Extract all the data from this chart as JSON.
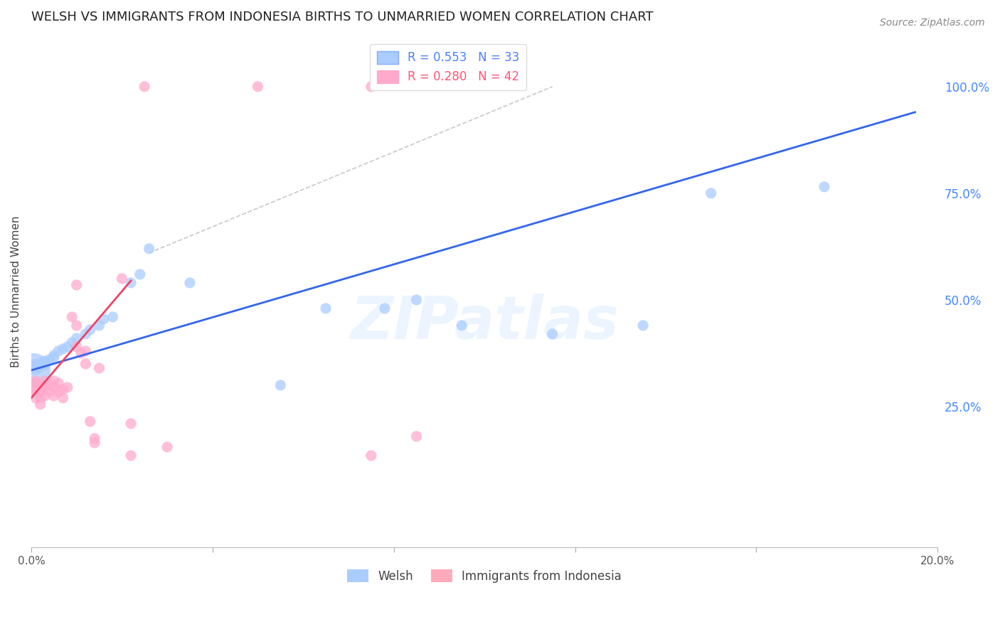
{
  "title": "WELSH VS IMMIGRANTS FROM INDONESIA BIRTHS TO UNMARRIED WOMEN CORRELATION CHART",
  "source": "Source: ZipAtlas.com",
  "ylabel": "Births to Unmarried Women",
  "xlim": [
    0.0,
    0.2
  ],
  "ylim": [
    -0.08,
    1.12
  ],
  "yticks_right": [
    0.25,
    0.5,
    0.75,
    1.0
  ],
  "ytick_labels_right": [
    "25.0%",
    "50.0%",
    "75.0%",
    "100.0%"
  ],
  "legend_items": [
    {
      "label": "R = 0.553   N = 33",
      "color": "#4d7fff"
    },
    {
      "label": "R = 0.280   N = 42",
      "color": "#ff5577"
    }
  ],
  "bottom_legend": [
    "Welsh",
    "Immigrants from Indonesia"
  ],
  "bottom_legend_colors": [
    "#aaccff",
    "#ffaabb"
  ],
  "watermark_text": "ZIPatlas",
  "blue_scatter": {
    "x": [
      0.0005,
      0.001,
      0.001,
      0.002,
      0.002,
      0.003,
      0.003,
      0.004,
      0.005,
      0.005,
      0.006,
      0.007,
      0.008,
      0.009,
      0.01,
      0.012,
      0.013,
      0.015,
      0.016,
      0.018,
      0.022,
      0.024,
      0.026,
      0.035,
      0.055,
      0.065,
      0.078,
      0.085,
      0.095,
      0.115,
      0.135,
      0.15,
      0.175
    ],
    "y": [
      0.335,
      0.34,
      0.345,
      0.345,
      0.35,
      0.35,
      0.355,
      0.36,
      0.365,
      0.37,
      0.38,
      0.385,
      0.39,
      0.4,
      0.41,
      0.42,
      0.43,
      0.44,
      0.455,
      0.46,
      0.54,
      0.56,
      0.62,
      0.54,
      0.3,
      0.48,
      0.48,
      0.5,
      0.44,
      0.42,
      0.44,
      0.75,
      0.765
    ],
    "sizes": [
      1200,
      200,
      200,
      150,
      150,
      150,
      150,
      120,
      120,
      120,
      120,
      120,
      120,
      120,
      120,
      120,
      120,
      120,
      120,
      120,
      120,
      120,
      120,
      120,
      120,
      120,
      120,
      120,
      120,
      120,
      120,
      120,
      120
    ]
  },
  "pink_scatter": {
    "x": [
      0.001,
      0.001,
      0.001,
      0.001,
      0.001,
      0.002,
      0.002,
      0.002,
      0.002,
      0.003,
      0.003,
      0.003,
      0.004,
      0.004,
      0.005,
      0.005,
      0.005,
      0.006,
      0.006,
      0.007,
      0.007,
      0.008,
      0.009,
      0.01,
      0.011,
      0.012,
      0.013,
      0.014,
      0.015,
      0.02,
      0.022,
      0.01,
      0.01,
      0.012,
      0.014,
      0.022,
      0.03,
      0.025,
      0.05,
      0.075,
      0.075,
      0.085
    ],
    "y": [
      0.31,
      0.29,
      0.305,
      0.285,
      0.27,
      0.3,
      0.285,
      0.27,
      0.255,
      0.31,
      0.295,
      0.275,
      0.3,
      0.285,
      0.31,
      0.295,
      0.275,
      0.305,
      0.285,
      0.29,
      0.27,
      0.295,
      0.46,
      0.39,
      0.375,
      0.35,
      0.215,
      0.175,
      0.34,
      0.55,
      0.135,
      0.535,
      0.44,
      0.38,
      0.165,
      0.21,
      0.155,
      1.0,
      1.0,
      0.135,
      1.0,
      0.18
    ],
    "sizes": [
      120,
      120,
      120,
      120,
      120,
      120,
      120,
      120,
      120,
      120,
      120,
      120,
      120,
      120,
      120,
      120,
      120,
      120,
      120,
      120,
      120,
      120,
      120,
      120,
      120,
      120,
      120,
      120,
      120,
      120,
      120,
      120,
      120,
      120,
      120,
      120,
      120,
      120,
      120,
      120,
      120,
      120
    ]
  },
  "blue_line": {
    "x0": 0.0,
    "x1": 0.195,
    "y0": 0.335,
    "y1": 0.94
  },
  "pink_line": {
    "x0": 0.0,
    "x1": 0.022,
    "y0": 0.27,
    "y1": 0.545
  },
  "ref_line": {
    "x0": 0.026,
    "x1": 0.115,
    "y0": 0.61,
    "y1": 1.0
  },
  "grid_color": "#cccccc",
  "bg_color": "#ffffff",
  "blue_line_color": "#3366ee",
  "pink_line_color": "#ee4466",
  "blue_scatter_color": "#aaccff",
  "pink_scatter_color": "#ffaacc",
  "right_axis_color": "#4488ff",
  "title_fontsize": 13,
  "axis_label_fontsize": 11
}
